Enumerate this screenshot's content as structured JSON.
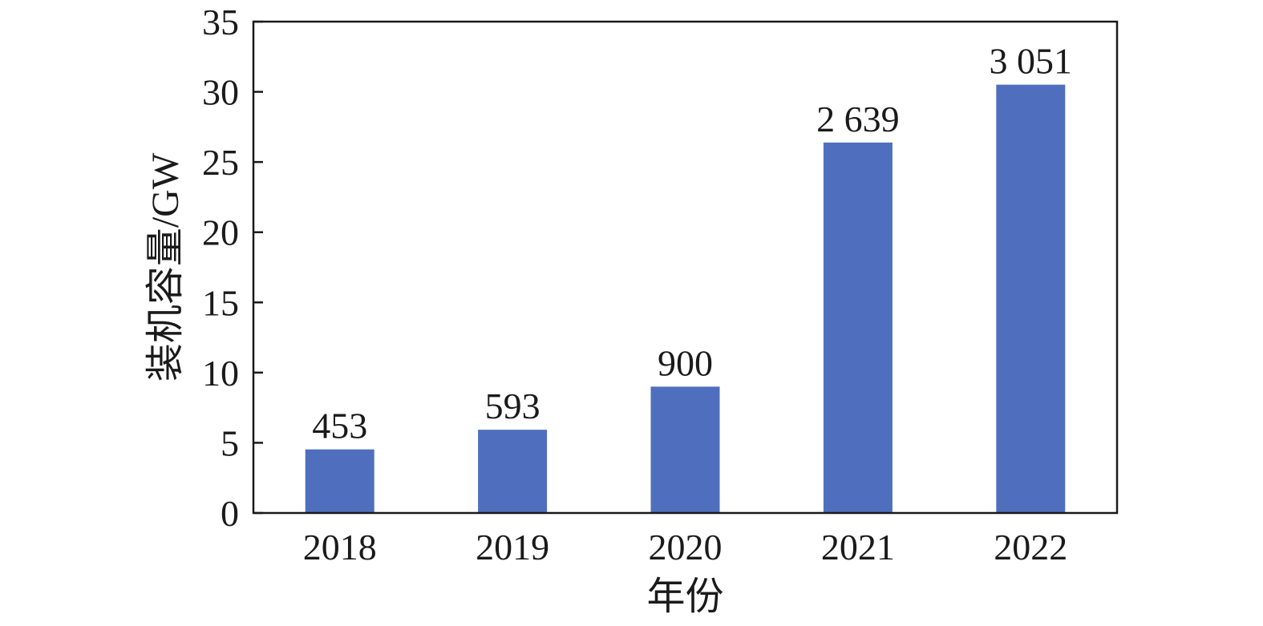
{
  "chart_data": {
    "type": "bar",
    "title": "",
    "xlabel": "年份",
    "ylabel": "装机容量/GW",
    "categories": [
      "2018",
      "2019",
      "2020",
      "2021",
      "2022"
    ],
    "values": [
      4.53,
      5.93,
      9.0,
      26.39,
      30.51
    ],
    "data_labels": [
      "453",
      "593",
      "900",
      "2 639",
      "3 051"
    ],
    "ylim": [
      0,
      35
    ],
    "yticks": [
      0,
      5,
      10,
      15,
      20,
      25,
      30,
      35
    ],
    "grid": false,
    "legend": "none",
    "bar_color": "#4f6fbe"
  }
}
